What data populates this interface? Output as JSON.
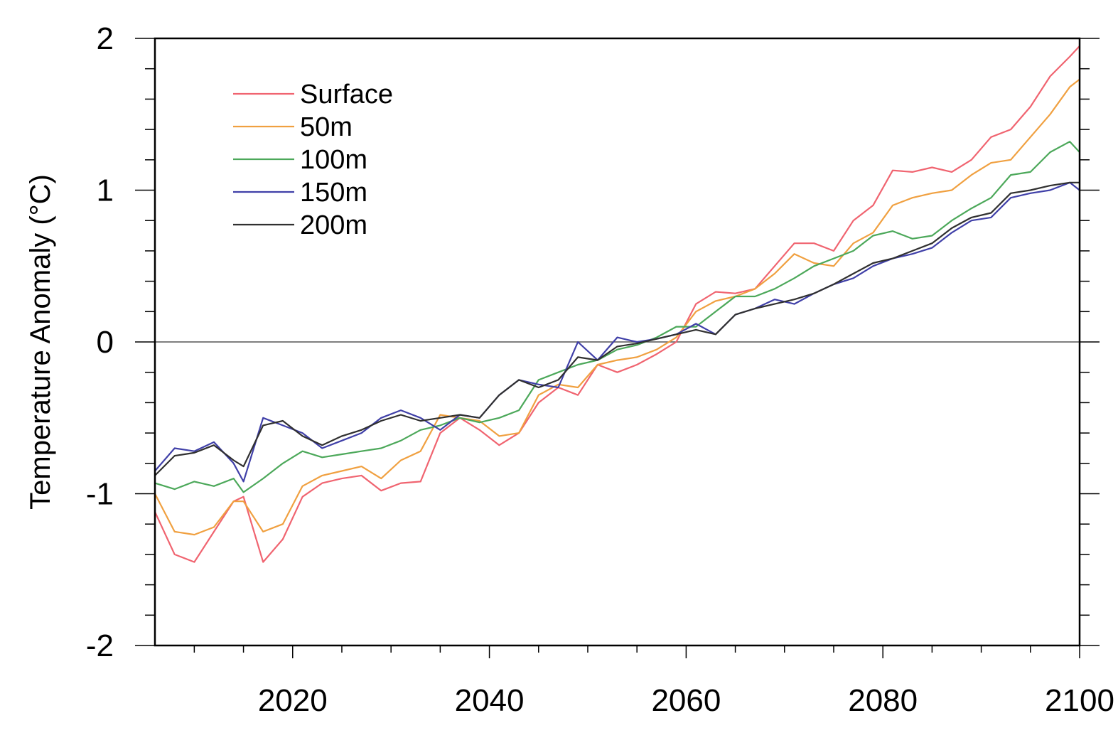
{
  "chart_data": {
    "type": "line",
    "ylabel": "Temperature Anomaly (°C)",
    "xlim": [
      2006,
      2100
    ],
    "ylim": [
      -2,
      2
    ],
    "x_ticks": [
      2020,
      2040,
      2060,
      2080,
      2100
    ],
    "x_tick_labels": [
      "2020",
      "2040",
      "2060",
      "2080",
      "2100"
    ],
    "y_ticks": [
      -2,
      -1,
      0,
      1,
      2
    ],
    "y_tick_labels": [
      "-2",
      "-1",
      "0",
      "1",
      "2"
    ],
    "reference_line": 0,
    "grid": false,
    "legend_position": "top-left",
    "x": [
      2006,
      2008,
      2010,
      2012,
      2014,
      2015,
      2017,
      2019,
      2021,
      2023,
      2025,
      2027,
      2029,
      2031,
      2033,
      2035,
      2037,
      2039,
      2041,
      2043,
      2045,
      2047,
      2049,
      2051,
      2053,
      2055,
      2057,
      2059,
      2061,
      2063,
      2065,
      2067,
      2069,
      2071,
      2073,
      2075,
      2077,
      2079,
      2081,
      2083,
      2085,
      2087,
      2089,
      2091,
      2093,
      2095,
      2097,
      2099,
      2100
    ],
    "series": [
      {
        "name": "Surface",
        "color": "#f06470",
        "values": [
          -1.12,
          -1.4,
          -1.45,
          -1.25,
          -1.05,
          -1.02,
          -1.45,
          -1.3,
          -1.02,
          -0.93,
          -0.9,
          -0.88,
          -0.98,
          -0.93,
          -0.92,
          -0.6,
          -0.5,
          -0.58,
          -0.68,
          -0.6,
          -0.4,
          -0.3,
          -0.35,
          -0.15,
          -0.2,
          -0.15,
          -0.08,
          0.0,
          0.25,
          0.33,
          0.32,
          0.35,
          0.5,
          0.65,
          0.65,
          0.6,
          0.8,
          0.9,
          1.13,
          1.12,
          1.15,
          1.12,
          1.2,
          1.35,
          1.4,
          1.55,
          1.75,
          1.88,
          1.95
        ]
      },
      {
        "name": "50m",
        "color": "#f0a040",
        "values": [
          -1.0,
          -1.25,
          -1.27,
          -1.22,
          -1.05,
          -1.05,
          -1.25,
          -1.2,
          -0.95,
          -0.88,
          -0.85,
          -0.82,
          -0.9,
          -0.78,
          -0.72,
          -0.48,
          -0.5,
          -0.52,
          -0.62,
          -0.6,
          -0.35,
          -0.28,
          -0.3,
          -0.15,
          -0.12,
          -0.1,
          -0.05,
          0.03,
          0.2,
          0.27,
          0.3,
          0.35,
          0.45,
          0.58,
          0.52,
          0.5,
          0.65,
          0.72,
          0.9,
          0.95,
          0.98,
          1.0,
          1.1,
          1.18,
          1.2,
          1.35,
          1.5,
          1.68,
          1.73
        ]
      },
      {
        "name": "100m",
        "color": "#4ca85a",
        "values": [
          -0.93,
          -0.97,
          -0.92,
          -0.95,
          -0.9,
          -0.99,
          -0.9,
          -0.8,
          -0.72,
          -0.76,
          -0.74,
          -0.72,
          -0.7,
          -0.65,
          -0.58,
          -0.55,
          -0.5,
          -0.53,
          -0.5,
          -0.45,
          -0.25,
          -0.2,
          -0.15,
          -0.12,
          -0.05,
          -0.02,
          0.03,
          0.1,
          0.1,
          0.2,
          0.3,
          0.3,
          0.35,
          0.42,
          0.5,
          0.55,
          0.6,
          0.7,
          0.73,
          0.68,
          0.7,
          0.8,
          0.88,
          0.95,
          1.1,
          1.12,
          1.25,
          1.32,
          1.25
        ]
      },
      {
        "name": "150m",
        "color": "#4040a8",
        "values": [
          -0.85,
          -0.7,
          -0.72,
          -0.66,
          -0.8,
          -0.92,
          -0.5,
          -0.55,
          -0.6,
          -0.7,
          -0.65,
          -0.6,
          -0.5,
          -0.45,
          -0.5,
          -0.58,
          -0.48,
          -0.5,
          -0.35,
          -0.25,
          -0.28,
          -0.3,
          0.0,
          -0.12,
          0.03,
          0.0,
          0.02,
          0.05,
          0.12,
          0.05,
          0.18,
          0.22,
          0.28,
          0.25,
          0.32,
          0.38,
          0.42,
          0.5,
          0.55,
          0.58,
          0.62,
          0.72,
          0.8,
          0.82,
          0.95,
          0.98,
          1.0,
          1.05,
          1.0
        ]
      },
      {
        "name": "200m",
        "color": "#303030",
        "values": [
          -0.88,
          -0.75,
          -0.73,
          -0.68,
          -0.78,
          -0.82,
          -0.55,
          -0.52,
          -0.62,
          -0.68,
          -0.62,
          -0.58,
          -0.52,
          -0.48,
          -0.52,
          -0.5,
          -0.48,
          -0.5,
          -0.35,
          -0.25,
          -0.3,
          -0.25,
          -0.1,
          -0.12,
          -0.03,
          -0.01,
          0.02,
          0.05,
          0.08,
          0.05,
          0.18,
          0.22,
          0.25,
          0.28,
          0.32,
          0.38,
          0.45,
          0.52,
          0.55,
          0.6,
          0.65,
          0.75,
          0.82,
          0.85,
          0.98,
          1.0,
          1.03,
          1.05,
          1.05
        ]
      }
    ]
  }
}
